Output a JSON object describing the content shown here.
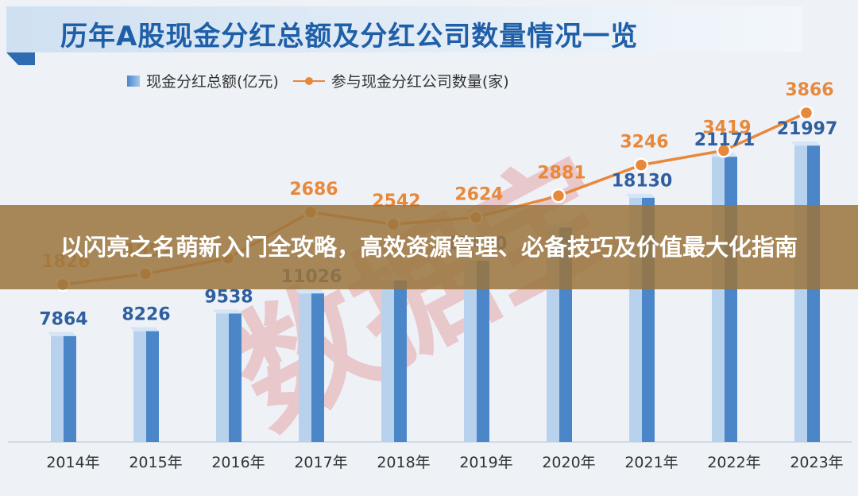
{
  "page": {
    "title": "历年A股现金分红总额及分红公司数量情况一览",
    "overlay_headline": "以闪亮之名萌新入门全攻略，高效资源管理、必备技巧及价值最大化指南",
    "watermark": "数据宝"
  },
  "colors": {
    "bar": "#4a86c8",
    "bar_light": "#b8d2ee",
    "line": "#e8883a",
    "bar_label": "#2f5f9e",
    "title": "#1f5fa8",
    "overlay": "#9b763e"
  },
  "chart_data": {
    "type": "bar",
    "title": "历年A股现金分红总额及分红公司数量情况一览",
    "categories": [
      "2014年",
      "2015年",
      "2016年",
      "2017年",
      "2018年",
      "2019年",
      "2020年",
      "2021年",
      "2022年",
      "2023年"
    ],
    "series": [
      {
        "name": "现金分红总额(亿元)",
        "type": "bar",
        "values": [
          7864,
          8226,
          9538,
          11026,
          12000,
          13470,
          15920,
          18130,
          21171,
          21997
        ],
        "labels": [
          "7864",
          "8226",
          "9538",
          "11026",
          "",
          "13470",
          "",
          "18130",
          "21171",
          "21997"
        ]
      },
      {
        "name": "参与现金分红公司数量(家)",
        "type": "line",
        "values": [
          1826,
          1952,
          2140,
          2686,
          2542,
          2624,
          2881,
          3246,
          3419,
          3866
        ],
        "labels": [
          "1826",
          "1952",
          "",
          "2686",
          "2542",
          "2624",
          "2881",
          "3246",
          "3419",
          "3866"
        ]
      }
    ],
    "legend": "top-left",
    "grid": false
  }
}
